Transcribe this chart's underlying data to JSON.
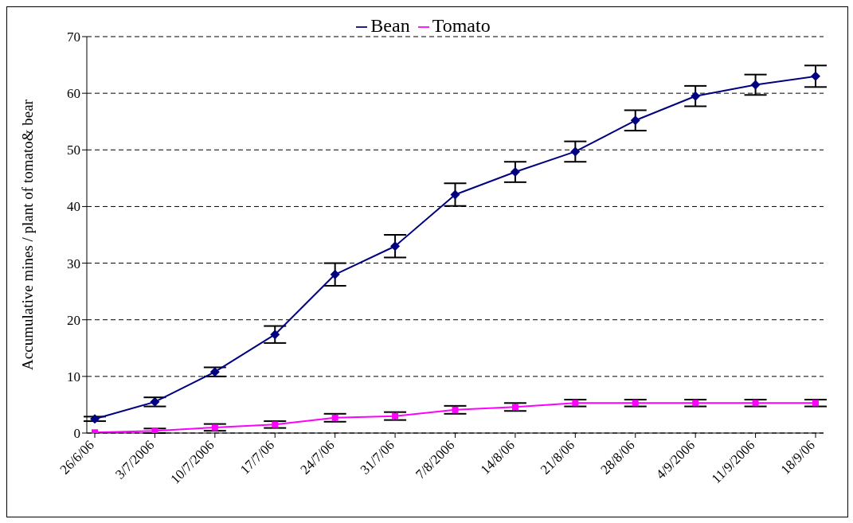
{
  "chart_data": {
    "type": "line",
    "ylabel": "Accumulative mines / plant of tomato& bear",
    "categories": [
      "26/6/06",
      "3/7/2006",
      "10/7/2006",
      "17/7/06",
      "24/7/06",
      "31/7/06",
      "7/8/2006",
      "14/8/06",
      "21/8/06",
      "28/8/06",
      "4/9/2006",
      "11/9/2006",
      "18/9/06"
    ],
    "series": [
      {
        "name": "Bean",
        "color": "#000080",
        "marker": "diamond",
        "values": [
          2.5,
          5.5,
          10.8,
          17.4,
          28,
          33,
          42.1,
          46.1,
          49.7,
          55.2,
          59.5,
          61.5,
          63
        ],
        "errors": [
          0.4,
          0.8,
          0.8,
          1.5,
          2,
          2,
          2,
          1.8,
          1.8,
          1.8,
          1.8,
          1.8,
          1.9
        ]
      },
      {
        "name": "Tomato",
        "color": "#ff00ff",
        "marker": "square",
        "values": [
          0.1,
          0.4,
          1.0,
          1.5,
          2.7,
          3.0,
          4.1,
          4.6,
          5.3,
          5.3,
          5.3,
          5.3,
          5.3
        ],
        "errors": [
          null,
          0.4,
          0.6,
          0.6,
          0.7,
          0.7,
          0.7,
          0.7,
          0.6,
          0.6,
          0.6,
          0.6,
          0.6
        ]
      }
    ],
    "ylim": [
      0,
      70
    ],
    "yticks": [
      0,
      10,
      20,
      30,
      40,
      50,
      60,
      70
    ],
    "grid": "y",
    "legend": "top",
    "line_style": "solid"
  }
}
